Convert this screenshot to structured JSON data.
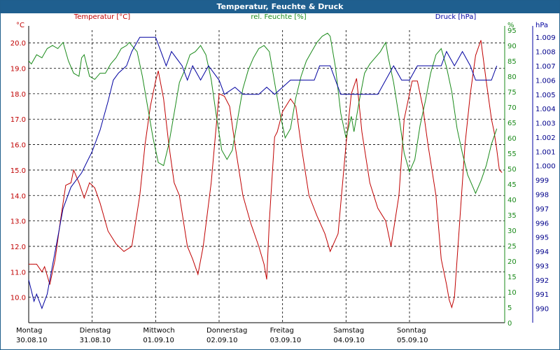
{
  "window": {
    "title": "Temperatur, Feuchte & Druck"
  },
  "colors": {
    "temperature": "#c00000",
    "humidity": "#1a8a1a",
    "pressure": "#0000a0",
    "titlebar": "#1f5f8f"
  },
  "chart_data": {
    "type": "line",
    "title": "Temperatur, Feuchte & Druck",
    "grid": true,
    "x_start": "30.08.10",
    "x_end": "06.09.10",
    "x_days": [
      {
        "day": "Montag",
        "date": "30.08.10"
      },
      {
        "day": "Dienstag",
        "date": "31.08.10"
      },
      {
        "day": "Mittwoch",
        "date": "01.09.10"
      },
      {
        "day": "Donnerstag",
        "date": "02.09.10"
      },
      {
        "day": "Freitag",
        "date": "03.09.10"
      },
      {
        "day": "Samstag",
        "date": "04.09.10"
      },
      {
        "day": "Sonntag",
        "date": "05.09.10"
      }
    ],
    "axes": {
      "temperature": {
        "label": "Temperatur [°C]",
        "unit": "°C",
        "min": 9.0,
        "max": 20.5,
        "ticks": [
          "10.0",
          "11.0",
          "12.0",
          "13.0",
          "14.0",
          "15.0",
          "16.0",
          "17.0",
          "18.0",
          "19.0",
          "20.0"
        ]
      },
      "humidity": {
        "label": "rel. Feuchte [%]",
        "unit": "%",
        "min": 0,
        "max": 95,
        "ticks": [
          "0",
          "5",
          "10",
          "15",
          "20",
          "25",
          "30",
          "35",
          "40",
          "45",
          "50",
          "55",
          "60",
          "65",
          "70",
          "75",
          "80",
          "85",
          "90",
          "95"
        ]
      },
      "pressure": {
        "label": "Druck [hPa]",
        "unit": "hPa",
        "min": 989.0,
        "max": 1009.5,
        "ticks": [
          "990",
          "991",
          "992",
          "993",
          "994",
          "995",
          "996",
          "997",
          "998",
          "999",
          "1.000",
          "1.001",
          "1.002",
          "1.003",
          "1.004",
          "1.005",
          "1.006",
          "1.007",
          "1.008",
          "1.009"
        ]
      }
    },
    "series": [
      {
        "name": "Temperatur [°C]",
        "axis": "temperature",
        "points": [
          [
            "30.08.10 00:00",
            11.3
          ],
          [
            "30.08.10 03:00",
            11.3
          ],
          [
            "30.08.10 05:00",
            11.0
          ],
          [
            "30.08.10 06:00",
            11.2
          ],
          [
            "30.08.10 08:00",
            10.5
          ],
          [
            "30.08.10 10:00",
            11.5
          ],
          [
            "30.08.10 12:00",
            13.0
          ],
          [
            "30.08.10 14:00",
            14.4
          ],
          [
            "30.08.10 16:00",
            14.5
          ],
          [
            "30.08.10 17:00",
            15.0
          ],
          [
            "30.08.10 19:00",
            14.5
          ],
          [
            "30.08.10 21:00",
            13.9
          ],
          [
            "30.08.10 23:00",
            14.5
          ],
          [
            "31.08.10 01:00",
            14.3
          ],
          [
            "31.08.10 03:00",
            13.7
          ],
          [
            "31.08.10 06:00",
            12.6
          ],
          [
            "31.08.10 09:00",
            12.1
          ],
          [
            "31.08.10 12:00",
            11.8
          ],
          [
            "31.08.10 15:00",
            12.0
          ],
          [
            "31.08.10 18:00",
            14.0
          ],
          [
            "31.08.10 20:00",
            16.0
          ],
          [
            "31.08.10 22:00",
            17.5
          ],
          [
            "01.09.10 00:00",
            18.5
          ],
          [
            "01.09.10 01:00",
            18.9
          ],
          [
            "01.09.10 03:00",
            17.8
          ],
          [
            "01.09.10 05:00",
            16.0
          ],
          [
            "01.09.10 07:00",
            14.5
          ],
          [
            "01.09.10 09:00",
            14.0
          ],
          [
            "01.09.10 12:00",
            12.0
          ],
          [
            "01.09.10 14:00",
            11.5
          ],
          [
            "01.09.10 16:00",
            10.9
          ],
          [
            "01.09.10 18:00",
            12.0
          ],
          [
            "01.09.10 21:00",
            14.5
          ],
          [
            "02.09.10 00:00",
            18.0
          ],
          [
            "02.09.10 02:00",
            17.9
          ],
          [
            "02.09.10 04:00",
            17.5
          ],
          [
            "02.09.10 06:00",
            16.0
          ],
          [
            "02.09.10 09:00",
            14.0
          ],
          [
            "02.09.10 12:00",
            12.9
          ],
          [
            "02.09.10 15:00",
            12.0
          ],
          [
            "02.09.10 17:00",
            11.3
          ],
          [
            "02.09.10 18:00",
            10.7
          ],
          [
            "02.09.10 19:00",
            13.0
          ],
          [
            "02.09.10 21:00",
            16.3
          ],
          [
            "02.09.10 22:00",
            16.5
          ],
          [
            "03.09.10 00:00",
            17.3
          ],
          [
            "03.09.10 03:00",
            17.8
          ],
          [
            "03.09.10 05:00",
            17.5
          ],
          [
            "03.09.10 07:00",
            16.0
          ],
          [
            "03.09.10 10:00",
            14.0
          ],
          [
            "03.09.10 13:00",
            13.2
          ],
          [
            "03.09.10 16:00",
            12.5
          ],
          [
            "03.09.10 18:00",
            11.8
          ],
          [
            "03.09.10 21:00",
            12.5
          ],
          [
            "04.09.10 00:00",
            16.0
          ],
          [
            "04.09.10 02:00",
            18.0
          ],
          [
            "04.09.10 04:00",
            18.6
          ],
          [
            "04.09.10 06:00",
            16.5
          ],
          [
            "04.09.10 09:00",
            14.5
          ],
          [
            "04.09.10 12:00",
            13.5
          ],
          [
            "04.09.10 15:00",
            13.0
          ],
          [
            "04.09.10 17:00",
            12.0
          ],
          [
            "04.09.10 20:00",
            14.0
          ],
          [
            "04.09.10 22:00",
            17.0
          ],
          [
            "05.09.10 01:00",
            18.5
          ],
          [
            "05.09.10 03:00",
            18.5
          ],
          [
            "05.09.10 05:00",
            17.5
          ],
          [
            "05.09.10 07:00",
            16.0
          ],
          [
            "05.09.10 10:00",
            14.0
          ],
          [
            "05.09.10 12:00",
            11.5
          ],
          [
            "05.09.10 14:00",
            10.5
          ],
          [
            "05.09.10 15:00",
            9.9
          ],
          [
            "05.09.10 16:00",
            9.6
          ],
          [
            "05.09.10 17:00",
            10.0
          ],
          [
            "05.09.10 19:00",
            13.0
          ],
          [
            "05.09.10 21:00",
            16.0
          ],
          [
            "05.09.10 23:00",
            18.0
          ],
          [
            "06.09.10 01:00",
            19.5
          ],
          [
            "06.09.10 03:00",
            20.1
          ],
          [
            "06.09.10 05:00",
            18.5
          ],
          [
            "06.09.10 07:00",
            17.0
          ],
          [
            "06.09.10 08:00",
            16.5
          ],
          [
            "06.09.10 09:00",
            15.8
          ],
          [
            "06.09.10 10:00",
            15.0
          ],
          [
            "06.09.10 11:00",
            14.9
          ]
        ]
      },
      {
        "name": "rel. Feuchte [%]",
        "axis": "humidity",
        "points": [
          [
            "30.08.10 00:00",
            85
          ],
          [
            "30.08.10 01:00",
            84
          ],
          [
            "30.08.10 03:00",
            87
          ],
          [
            "30.08.10 05:00",
            86
          ],
          [
            "30.08.10 07:00",
            89
          ],
          [
            "30.08.10 09:00",
            90
          ],
          [
            "30.08.10 11:00",
            89
          ],
          [
            "30.08.10 13:00",
            91
          ],
          [
            "30.08.10 15:00",
            85
          ],
          [
            "30.08.10 17:00",
            81
          ],
          [
            "30.08.10 19:00",
            80
          ],
          [
            "30.08.10 20:00",
            86
          ],
          [
            "30.08.10 21:00",
            87
          ],
          [
            "30.08.10 23:00",
            80
          ],
          [
            "31.08.10 01:00",
            79
          ],
          [
            "31.08.10 03:00",
            81
          ],
          [
            "31.08.10 05:00",
            81
          ],
          [
            "31.08.10 07:00",
            84
          ],
          [
            "31.08.10 09:00",
            86
          ],
          [
            "31.08.10 11:00",
            89
          ],
          [
            "31.08.10 13:00",
            90
          ],
          [
            "31.08.10 14:00",
            91
          ],
          [
            "31.08.10 17:00",
            88
          ],
          [
            "31.08.10 19:00",
            80
          ],
          [
            "31.08.10 21:00",
            70
          ],
          [
            "31.08.10 23:00",
            60
          ],
          [
            "01.09.10 01:00",
            52
          ],
          [
            "01.09.10 03:00",
            51
          ],
          [
            "01.09.10 05:00",
            58
          ],
          [
            "01.09.10 07:00",
            68
          ],
          [
            "01.09.10 09:00",
            78
          ],
          [
            "01.09.10 11:00",
            82
          ],
          [
            "01.09.10 13:00",
            87
          ],
          [
            "01.09.10 15:00",
            88
          ],
          [
            "01.09.10 17:00",
            90
          ],
          [
            "01.09.10 19:00",
            87
          ],
          [
            "01.09.10 21:00",
            79
          ],
          [
            "01.09.10 23:00",
            67
          ],
          [
            "02.09.10 01:00",
            56
          ],
          [
            "02.09.10 03:00",
            53
          ],
          [
            "02.09.10 05:00",
            56
          ],
          [
            "02.09.10 07:00",
            66
          ],
          [
            "02.09.10 09:00",
            76
          ],
          [
            "02.09.10 11:00",
            82
          ],
          [
            "02.09.10 13:00",
            86
          ],
          [
            "02.09.10 15:00",
            89
          ],
          [
            "02.09.10 17:00",
            90
          ],
          [
            "02.09.10 19:00",
            88
          ],
          [
            "02.09.10 21:00",
            78
          ],
          [
            "02.09.10 23:00",
            68
          ],
          [
            "03.09.10 01:00",
            60
          ],
          [
            "03.09.10 03:00",
            63
          ],
          [
            "03.09.10 05:00",
            73
          ],
          [
            "03.09.10 07:00",
            80
          ],
          [
            "03.09.10 09:00",
            85
          ],
          [
            "03.09.10 11:00",
            88
          ],
          [
            "03.09.10 13:00",
            91
          ],
          [
            "03.09.10 15:00",
            93
          ],
          [
            "03.09.10 17:00",
            94
          ],
          [
            "03.09.10 18:00",
            93
          ],
          [
            "03.09.10 20:00",
            83
          ],
          [
            "03.09.10 22:00",
            68
          ],
          [
            "04.09.10 00:00",
            60
          ],
          [
            "04.09.10 02:00",
            67
          ],
          [
            "04.09.10 03:00",
            62
          ],
          [
            "04.09.10 05:00",
            72
          ],
          [
            "04.09.10 07:00",
            81
          ],
          [
            "04.09.10 09:00",
            84
          ],
          [
            "04.09.10 11:00",
            86
          ],
          [
            "04.09.10 13:00",
            88
          ],
          [
            "04.09.10 15:00",
            91
          ],
          [
            "04.09.10 16:00",
            86
          ],
          [
            "04.09.10 18:00",
            78
          ],
          [
            "04.09.10 20:00",
            67
          ],
          [
            "04.09.10 22:00",
            55
          ],
          [
            "05.09.10 00:00",
            49
          ],
          [
            "05.09.10 02:00",
            53
          ],
          [
            "05.09.10 04:00",
            64
          ],
          [
            "05.09.10 06:00",
            72
          ],
          [
            "05.09.10 08:00",
            81
          ],
          [
            "05.09.10 10:00",
            87
          ],
          [
            "05.09.10 12:00",
            89
          ],
          [
            "05.09.10 14:00",
            83
          ],
          [
            "05.09.10 16:00",
            75
          ],
          [
            "05.09.10 18:00",
            63
          ],
          [
            "05.09.10 20:00",
            55
          ],
          [
            "05.09.10 22:00",
            48
          ],
          [
            "06.09.10 00:00",
            44
          ],
          [
            "06.09.10 01:00",
            42
          ],
          [
            "06.09.10 03:00",
            46
          ],
          [
            "06.09.10 05:00",
            51
          ],
          [
            "06.09.10 07:00",
            58
          ],
          [
            "06.09.10 09:00",
            63
          ]
        ]
      },
      {
        "name": "Druck [hPa]",
        "axis": "pressure",
        "points": [
          [
            "30.08.10 00:00",
            992.0
          ],
          [
            "30.08.10 02:00",
            990.5
          ],
          [
            "30.08.10 03:00",
            991.0
          ],
          [
            "30.08.10 05:00",
            990.0
          ],
          [
            "30.08.10 07:00",
            991.0
          ],
          [
            "30.08.10 09:00",
            993.0
          ],
          [
            "30.08.10 11:00",
            995.0
          ],
          [
            "30.08.10 13:00",
            997.0
          ],
          [
            "30.08.10 16:00",
            998.5
          ],
          [
            "30.08.10 20:00",
            999.5
          ],
          [
            "31.08.10 00:00",
            1001.0
          ],
          [
            "31.08.10 03:00",
            1002.5
          ],
          [
            "31.08.10 06:00",
            1004.5
          ],
          [
            "31.08.10 08:00",
            1006.0
          ],
          [
            "31.08.10 10:00",
            1006.5
          ],
          [
            "31.08.10 13:00",
            1007.0
          ],
          [
            "31.08.10 15:00",
            1008.0
          ],
          [
            "31.08.10 18:00",
            1009.0
          ],
          [
            "01.09.10 00:00",
            1009.0
          ],
          [
            "01.09.10 02:00",
            1008.0
          ],
          [
            "01.09.10 04:00",
            1007.0
          ],
          [
            "01.09.10 06:00",
            1008.0
          ],
          [
            "01.09.10 10:00",
            1007.0
          ],
          [
            "01.09.10 12:00",
            1006.0
          ],
          [
            "01.09.10 14:00",
            1007.0
          ],
          [
            "01.09.10 17:00",
            1006.0
          ],
          [
            "01.09.10 20:00",
            1007.0
          ],
          [
            "02.09.10 00:00",
            1006.0
          ],
          [
            "02.09.10 02:00",
            1005.0
          ],
          [
            "02.09.10 06:00",
            1005.5
          ],
          [
            "02.09.10 09:00",
            1005.0
          ],
          [
            "02.09.10 12:00",
            1005.0
          ],
          [
            "02.09.10 15:00",
            1005.0
          ],
          [
            "02.09.10 18:00",
            1005.5
          ],
          [
            "02.09.10 21:00",
            1005.0
          ],
          [
            "03.09.10 00:00",
            1005.5
          ],
          [
            "03.09.10 03:00",
            1006.0
          ],
          [
            "03.09.10 06:00",
            1006.0
          ],
          [
            "03.09.10 09:00",
            1006.0
          ],
          [
            "03.09.10 12:00",
            1006.0
          ],
          [
            "03.09.10 14:00",
            1007.0
          ],
          [
            "03.09.10 18:00",
            1007.0
          ],
          [
            "03.09.10 20:00",
            1006.0
          ],
          [
            "03.09.10 22:00",
            1005.0
          ],
          [
            "04.09.10 00:00",
            1005.0
          ],
          [
            "04.09.10 06:00",
            1005.0
          ],
          [
            "04.09.10 12:00",
            1005.0
          ],
          [
            "04.09.10 15:00",
            1006.0
          ],
          [
            "04.09.10 18:00",
            1007.0
          ],
          [
            "04.09.10 21:00",
            1006.0
          ],
          [
            "05.09.10 00:00",
            1006.0
          ],
          [
            "05.09.10 03:00",
            1007.0
          ],
          [
            "05.09.10 09:00",
            1007.0
          ],
          [
            "05.09.10 12:00",
            1007.0
          ],
          [
            "05.09.10 14:00",
            1008.0
          ],
          [
            "05.09.10 17:00",
            1007.0
          ],
          [
            "05.09.10 20:00",
            1008.0
          ],
          [
            "05.09.10 23:00",
            1007.0
          ],
          [
            "06.09.10 01:00",
            1006.0
          ],
          [
            "06.09.10 05:00",
            1006.0
          ],
          [
            "06.09.10 07:00",
            1006.0
          ],
          [
            "06.09.10 09:00",
            1007.0
          ]
        ]
      }
    ]
  }
}
